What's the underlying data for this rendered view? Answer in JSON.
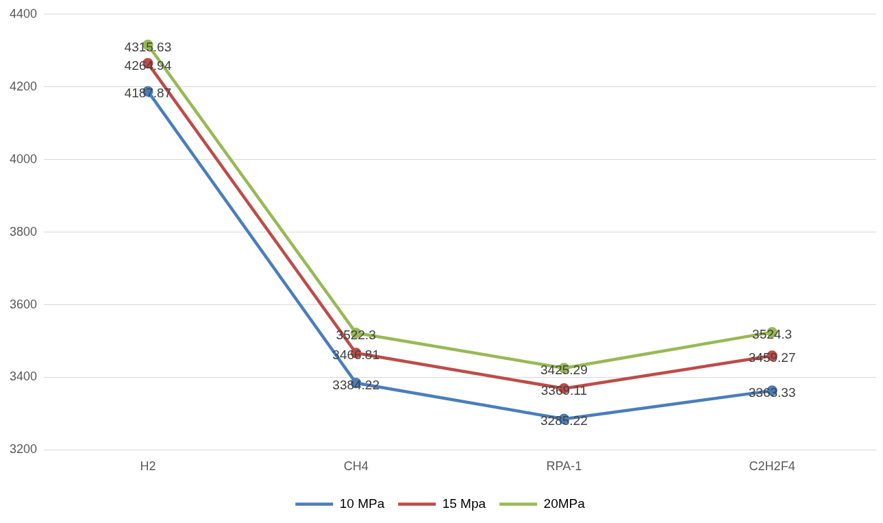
{
  "chart_data": {
    "type": "line",
    "categories": [
      "H2",
      "CH4",
      "RPA-1",
      "C2H2F4"
    ],
    "series": [
      {
        "name": "10 MPa",
        "color": "#4a7ebb",
        "values": [
          4187.87,
          3384.22,
          3285.22,
          3363.33
        ]
      },
      {
        "name": "15 Mpa",
        "color": "#be4b48",
        "values": [
          4264.94,
          3466.81,
          3369.11,
          3459.27
        ]
      },
      {
        "name": "20MPa",
        "color": "#98b954",
        "values": [
          4315.63,
          3522.3,
          3425.29,
          3524.3
        ]
      }
    ],
    "ylim": [
      3200,
      4400
    ],
    "yticks": [
      3200,
      3400,
      3600,
      3800,
      4000,
      4200,
      4400
    ],
    "grid": "y",
    "legend": "bottom",
    "marker": "circle",
    "line_style": "solid",
    "data_labels": true
  }
}
